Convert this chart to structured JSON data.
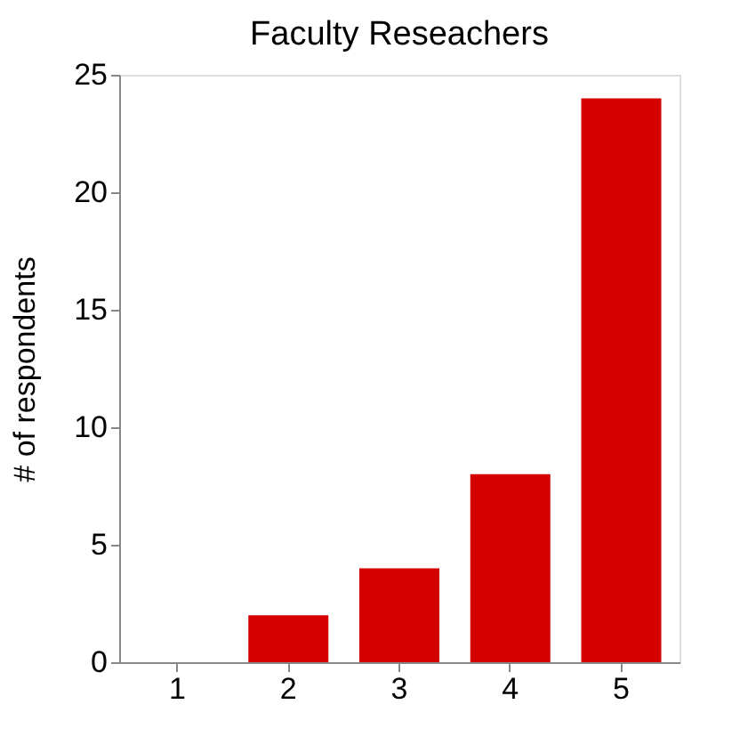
{
  "chart_data": {
    "type": "bar",
    "title": "Faculty Reseachers",
    "ylabel": "# of respondents",
    "categories": [
      "1",
      "2",
      "3",
      "4",
      "5"
    ],
    "values": [
      0,
      2,
      4,
      8,
      24
    ],
    "color": "#d40000",
    "ylim": [
      0,
      25
    ],
    "yticks": [
      0,
      5,
      10,
      15,
      20,
      25
    ],
    "grid": false
  }
}
